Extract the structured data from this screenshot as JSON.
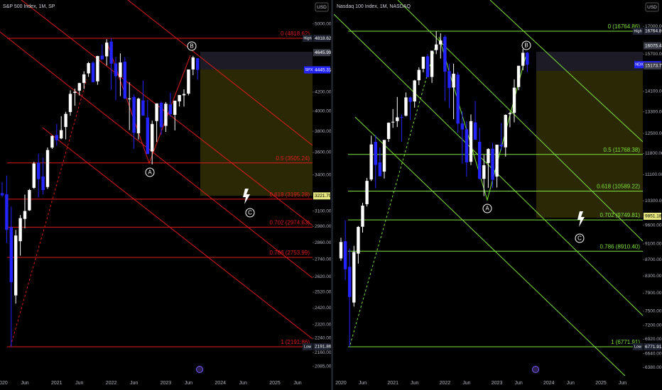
{
  "chart_data": [
    {
      "type": "candlestick",
      "title": "S&P 500 Index, 1M, SP",
      "currency": "USD",
      "log_scale": true,
      "up_color": "#ffffff",
      "down_color": "#2424ff",
      "fib_color": "#e01b1b",
      "ylim": [
        2035,
        5314
      ],
      "yticks": [
        {
          "value": 5000,
          "label": "5000.00"
        },
        {
          "value": 4200,
          "label": "4200.00"
        },
        {
          "value": 4000,
          "label": "4000.00"
        },
        {
          "value": 3800,
          "label": "3800.00"
        },
        {
          "value": 3600,
          "label": "3600.00"
        },
        {
          "value": 3400,
          "label": "3400.00"
        },
        {
          "value": 3100,
          "label": "3100.00"
        },
        {
          "value": 2980,
          "label": "2980.00"
        },
        {
          "value": 2860,
          "label": "2860.00"
        },
        {
          "value": 2740,
          "label": "2740.00"
        },
        {
          "value": 2620,
          "label": "2620.00"
        },
        {
          "value": 2520,
          "label": "2520.00"
        },
        {
          "value": 2420,
          "label": "2420.00"
        },
        {
          "value": 2320,
          "label": "2320.00"
        },
        {
          "value": 2240,
          "label": "2240.00"
        },
        {
          "value": 2160,
          "label": "2160.00"
        },
        {
          "value": 2085,
          "label": "2085.00"
        }
      ],
      "time_labels": [
        "2020",
        "Jun",
        "2021",
        "Jun",
        "2022",
        "Jun",
        "2023",
        "Jun",
        "2024",
        "Jun",
        "2025",
        "Jun"
      ],
      "open": [
        3245,
        3235,
        2974,
        2499,
        2870,
        3038,
        3105,
        3289,
        3507,
        3386,
        3296,
        3645,
        3764,
        3731,
        3842,
        3992,
        4192,
        4216,
        4300,
        4406,
        4528,
        4317,
        4610,
        4602,
        4778,
        4519,
        4363,
        4540,
        4130,
        4149,
        3781,
        4112,
        3937,
        3610,
        3901,
        4087,
        3853,
        4070,
        3963,
        4102,
        4166,
        4184,
        4450,
        4579
      ],
      "high": [
        3338,
        3393,
        3136,
        2954,
        3068,
        3233,
        3280,
        3515,
        3588,
        3550,
        3646,
        3760,
        3871,
        3950,
        3994,
        4219,
        4238,
        4302,
        4430,
        4537,
        4546,
        4608,
        4744,
        4808,
        4818.62,
        4595,
        4637,
        4594,
        4308,
        4177,
        4141,
        4325,
        4119,
        3905,
        4081,
        4101,
        4095,
        4195,
        4110,
        4170,
        4231,
        4449,
        4607,
        4584
      ],
      "low": [
        3214,
        2855,
        2191.86,
        2447,
        2766,
        2966,
        3101,
        3280,
        3209,
        3233,
        3280,
        3633,
        3662,
        3725,
        3723,
        3955,
        4056,
        4165,
        4233,
        4367,
        4305,
        4279,
        4560,
        4495,
        4223,
        4115,
        4157,
        4125,
        3811,
        3637,
        3722,
        3955,
        3584,
        3492,
        3698,
        3764,
        3794,
        3943,
        3809,
        4049,
        4048,
        4166,
        4385,
        4335
      ],
      "close": [
        3226,
        2954,
        2585,
        2912,
        3044,
        3100,
        3271,
        3500,
        3363,
        3270,
        3622,
        3756,
        3714,
        3811,
        3973,
        4181,
        4204,
        4298,
        4395,
        4523,
        4308,
        4605,
        4567,
        4766,
        4516,
        4374,
        4530,
        4132,
        4132,
        3785,
        4130,
        3955,
        3586,
        3872,
        4080,
        3840,
        4077,
        3970,
        4109,
        4169,
        4180,
        4450,
        4589,
        4445.31
      ],
      "fib_levels": [
        {
          "value": 4818.62,
          "label": "0 (4818.62)"
        },
        {
          "value": 3505.24,
          "label": "0.5 (3505.24)"
        },
        {
          "value": 3195.28,
          "label": "0.618 (3195.28)"
        },
        {
          "value": 2974.63,
          "label": "0.702 (2974.63)"
        },
        {
          "value": 2753.99,
          "label": "0.786 (2753.99)"
        },
        {
          "value": 2191.86,
          "label": "1 (2191.86)"
        }
      ],
      "price_labels": [
        {
          "value": 4818.62,
          "label": "4818.62",
          "tag": "High"
        },
        {
          "value": 4645.99,
          "label": "4645.99"
        },
        {
          "value": 4447.21,
          "label": "4447.21"
        },
        {
          "value": 4445.31,
          "label": "4445.31",
          "tag": "SPX"
        },
        {
          "value": 3221.79,
          "label": "3221.79"
        },
        {
          "value": 2191.86,
          "label": "2191.86",
          "tag": "Low"
        }
      ],
      "wave_labels": [
        "A",
        "B",
        "C"
      ]
    },
    {
      "type": "candlestick",
      "title": "Nasdaq 100 Index, 1M, NASDAQ",
      "currency": "USD",
      "log_scale": true,
      "up_color": "#ffffff",
      "down_color": "#2424ff",
      "fib_color": "#7ee33a",
      "ylim": [
        6230,
        18336
      ],
      "yticks": [
        {
          "value": 17000,
          "label": "17000.00"
        },
        {
          "value": 15700,
          "label": "15700.00"
        },
        {
          "value": 14100,
          "label": "14100.00"
        },
        {
          "value": 13300,
          "label": "13300.00"
        },
        {
          "value": 12500,
          "label": "12500.00"
        },
        {
          "value": 11800,
          "label": "11800.00"
        },
        {
          "value": 11100,
          "label": "11100.00"
        },
        {
          "value": 10300,
          "label": "10300.00"
        },
        {
          "value": 9600,
          "label": "9600.00"
        },
        {
          "value": 9100,
          "label": "9100.00"
        },
        {
          "value": 8700,
          "label": "8700.00"
        },
        {
          "value": 8300,
          "label": "8300.00"
        },
        {
          "value": 7900,
          "label": "7900.00"
        },
        {
          "value": 7500,
          "label": "7500.00"
        },
        {
          "value": 7200,
          "label": "7200.00"
        },
        {
          "value": 6920,
          "label": "6920.00"
        },
        {
          "value": 6640,
          "label": "6640.00"
        },
        {
          "value": 6380,
          "label": "6380.00"
        }
      ],
      "time_labels": [
        "2020",
        "Jun",
        "2021",
        "Jun",
        "2022",
        "Jun",
        "2023",
        "Jun",
        "2024",
        "Jun",
        "2025",
        "Jun"
      ],
      "open": [
        8730,
        9170,
        8520,
        7690,
        8850,
        9560,
        10200,
        10950,
        12200,
        11500,
        11200,
        12300,
        12900,
        12950,
        13100,
        13150,
        13860,
        13700,
        14560,
        15050,
        15600,
        14700,
        15880,
        16140,
        16500,
        14950,
        14260,
        14800,
        12860,
        12650,
        11520,
        12900,
        12200,
        10970,
        11480,
        11960,
        11040,
        12100,
        12010,
        13210,
        13260,
        14280,
        15180,
        15760
      ],
      "high": [
        9260,
        9736,
        8980,
        9050,
        9580,
        10240,
        11000,
        12420,
        12440,
        12000,
        12200,
        12900,
        13400,
        13880,
        13200,
        14060,
        13900,
        14580,
        15110,
        15550,
        15700,
        15850,
        16764.86,
        16660,
        16580,
        15260,
        15270,
        14900,
        13320,
        12950,
        13200,
        13720,
        12700,
        11750,
        11980,
        12170,
        12100,
        12880,
        13200,
        13300,
        14600,
        15180,
        15930,
        15800
      ],
      "low": [
        8670,
        8200,
        6771.91,
        7600,
        8600,
        9400,
        10130,
        10900,
        10680,
        11100,
        10980,
        12200,
        12700,
        12730,
        12200,
        13120,
        12990,
        13460,
        14360,
        14900,
        14700,
        14450,
        15700,
        15500,
        13720,
        13440,
        13020,
        12520,
        11460,
        11040,
        11410,
        12270,
        10950,
        10440,
        10690,
        10690,
        10700,
        11900,
        11695,
        12720,
        12900,
        14150,
        14990,
        14900
      ],
      "close": [
        9150,
        8462,
        7813,
        8890,
        9555,
        10157,
        10905,
        12110,
        11418,
        11052,
        12268,
        12888,
        12925,
        13090,
        13091,
        13860,
        13687,
        14554,
        15000,
        15580,
        14690,
        15850,
        16135,
        16320,
        14930,
        14240,
        14839,
        12855,
        12642,
        11503,
        12948,
        12272,
        10971,
        11406,
        11951,
        10940,
        12101,
        12042,
        13181,
        13246,
        14254,
        15179,
        15757,
        15225.91
      ],
      "fib_levels": [
        {
          "value": 16764.86,
          "label": "0 (16764.86)"
        },
        {
          "value": 11768.38,
          "label": "0.5 (11768.38)"
        },
        {
          "value": 10589.22,
          "label": "0.618 (10589.22)"
        },
        {
          "value": 9749.81,
          "label": "0.702 (9749.81)"
        },
        {
          "value": 8910.4,
          "label": "0.786 (8910.40)"
        },
        {
          "value": 6771.91,
          "label": "1 (6771.91)"
        }
      ],
      "price_labels": [
        {
          "value": 16764.86,
          "label": "16764.86",
          "tag": "High"
        },
        {
          "value": 16075.42,
          "label": "16075.42"
        },
        {
          "value": 15225.91,
          "label": "15225.91",
          "tag": "NDX"
        },
        {
          "value": 15173.71,
          "label": "15173.71"
        },
        {
          "value": 9851.18,
          "label": "9851.18"
        },
        {
          "value": 6771.91,
          "label": "6771.91",
          "tag": "Low"
        }
      ],
      "wave_labels": [
        "A",
        "B",
        "C"
      ]
    }
  ]
}
